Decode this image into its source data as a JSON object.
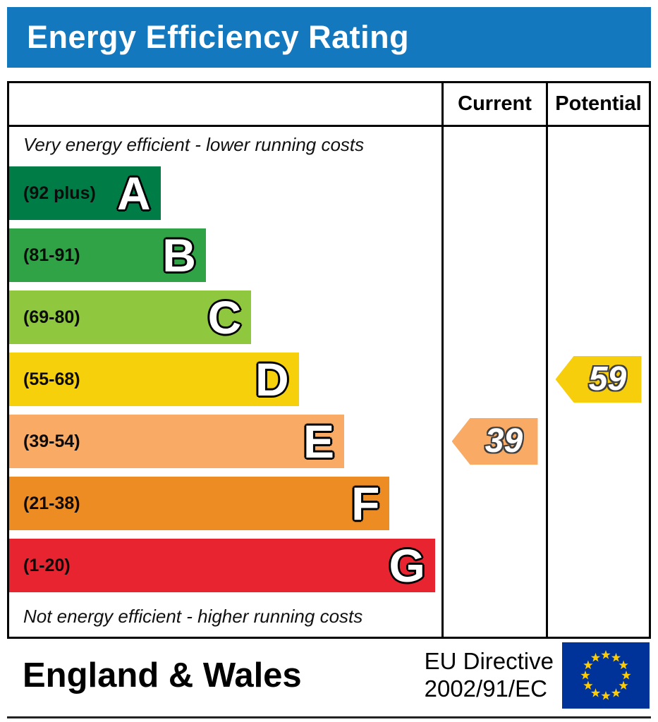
{
  "header": {
    "title": "Energy Efficiency Rating"
  },
  "columns": {
    "current": "Current",
    "potential": "Potential"
  },
  "notes": {
    "top": "Very energy efficient - lower running costs",
    "bottom": "Not energy efficient - higher running costs"
  },
  "bands": [
    {
      "letter": "A",
      "range": "(92 plus)",
      "color": "#007d46",
      "width_pct": 35
    },
    {
      "letter": "B",
      "range": "(81-91)",
      "color": "#30a346",
      "width_pct": 45.5
    },
    {
      "letter": "C",
      "range": "(69-80)",
      "color": "#8fc73e",
      "width_pct": 56
    },
    {
      "letter": "D",
      "range": "(55-68)",
      "color": "#f5d00b",
      "width_pct": 67
    },
    {
      "letter": "E",
      "range": "(39-54)",
      "color": "#f9ab65",
      "width_pct": 77.5
    },
    {
      "letter": "F",
      "range": "(21-38)",
      "color": "#ee8c24",
      "width_pct": 88
    },
    {
      "letter": "G",
      "range": "(1-20)",
      "color": "#e82430",
      "width_pct": 98.5
    }
  ],
  "ratings": {
    "current": {
      "value": "39",
      "band": "E",
      "band_index": 4,
      "color": "#f9ab65"
    },
    "potential": {
      "value": "59",
      "band": "D",
      "band_index": 3,
      "color": "#f7ce0c"
    }
  },
  "footer": {
    "region": "England & Wales",
    "directive_line1": "EU Directive",
    "directive_line2": "2002/91/EC"
  },
  "colors": {
    "title_bar_bg": "#1478bf",
    "title_text": "#ffffff",
    "frame_border": "#000000"
  },
  "flag": {
    "background": "#003399",
    "stars": "#ffcc00"
  },
  "chart_data": {
    "type": "bar",
    "title": "Energy Efficiency Rating",
    "categories": [
      "A (92 plus)",
      "B (81-91)",
      "C (69-80)",
      "D (55-68)",
      "E (39-54)",
      "F (21-38)",
      "G (1-20)"
    ],
    "band_colors": [
      "#007d46",
      "#30a346",
      "#8fc73e",
      "#f5d00b",
      "#f9ab65",
      "#ee8c24",
      "#e82430"
    ],
    "bar_length_pct": [
      35,
      45.5,
      56,
      67,
      77.5,
      88,
      98.5
    ],
    "markers": [
      {
        "name": "Current",
        "value": 39,
        "band": "E"
      },
      {
        "name": "Potential",
        "value": 59,
        "band": "D"
      }
    ],
    "scale_min": 1,
    "scale_max": 100,
    "top_label": "Very energy efficient - lower running costs",
    "bottom_label": "Not energy efficient - higher running costs",
    "legend_position": "none",
    "grid": false
  }
}
